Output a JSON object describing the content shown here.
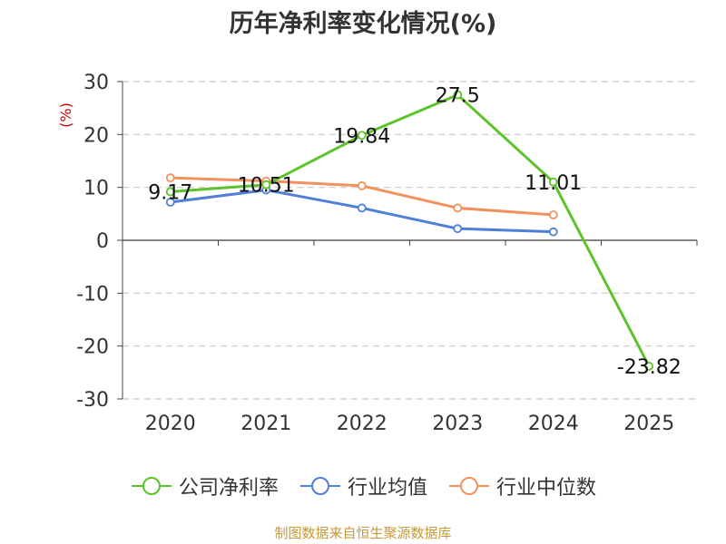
{
  "chart_data": {
    "type": "line",
    "title": "历年净利率变化情况(%)",
    "ylabel": "(%)",
    "xlabel": "",
    "categories": [
      "2020",
      "2021",
      "2022",
      "2023",
      "2024",
      "2025"
    ],
    "ylim": [
      -30,
      30
    ],
    "yticks": [
      30,
      20,
      10,
      0,
      -10,
      -20,
      -30
    ],
    "ytick_labels": [
      "30",
      "20",
      "10",
      "0",
      "-10",
      "-20",
      "-30"
    ],
    "grid": true,
    "legend_position": "bottom",
    "series": [
      {
        "name": "公司净利率",
        "color": "#5cc42a",
        "values": [
          9.17,
          10.51,
          19.84,
          27.5,
          11.01,
          -23.82
        ],
        "labels": [
          "9.17",
          "10.51",
          "19.84",
          "27.5",
          "11.01",
          "-23.82"
        ]
      },
      {
        "name": "行业均值",
        "color": "#4f7fd9",
        "values": [
          7.2,
          9.5,
          6.1,
          2.2,
          1.6,
          null
        ]
      },
      {
        "name": "行业中位数",
        "color": "#f3905b",
        "values": [
          11.8,
          11.2,
          10.3,
          6.1,
          4.8,
          null
        ]
      }
    ]
  },
  "source": "制图数据来自恒生聚源数据库"
}
